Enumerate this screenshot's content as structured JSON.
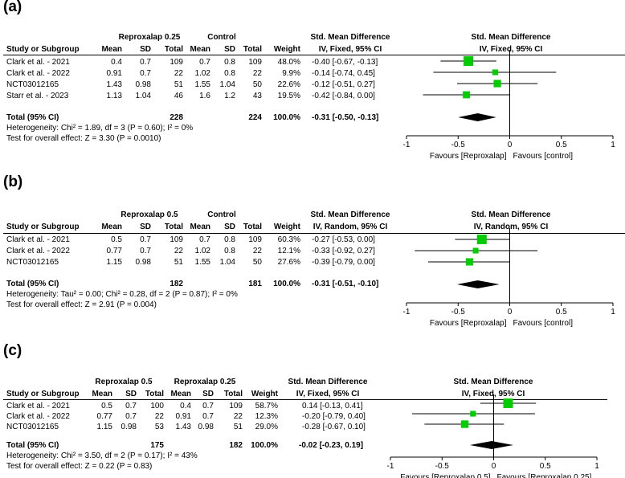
{
  "colors": {
    "square": "#00cc00",
    "line": "#000000",
    "diamond": "#000000"
  },
  "chart_data": [
    {
      "type": "forest",
      "panel_label": "(a)",
      "group1": "Reproxalap 0.25",
      "group2": "Control",
      "col_study": "Study or Subgroup",
      "col_mean": "Mean",
      "col_sd": "SD",
      "col_total": "Total",
      "col_weight": "Weight",
      "effect_title": "Std. Mean Difference",
      "effect_method": "IV, Fixed, 95% CI",
      "studies": [
        {
          "name": "Clark et al. - 2021",
          "m1": "0.4",
          "sd1": "0.7",
          "n1": "109",
          "m2": "0.7",
          "sd2": "0.8",
          "n2": "109",
          "weight": "48.0%",
          "ci_text": "-0.40 [-0.67, -0.13]",
          "est": -0.4,
          "lo": -0.67,
          "hi": -0.13,
          "w": 48.0
        },
        {
          "name": "Clark et al. - 2022",
          "m1": "0.91",
          "sd1": "0.7",
          "n1": "22",
          "m2": "1.02",
          "sd2": "0.8",
          "n2": "22",
          "weight": "9.9%",
          "ci_text": "-0.14 [-0.74, 0.45]",
          "est": -0.14,
          "lo": -0.74,
          "hi": 0.45,
          "w": 9.9
        },
        {
          "name": "NCT03012165",
          "m1": "1.43",
          "sd1": "0.98",
          "n1": "51",
          "m2": "1.55",
          "sd2": "1.04",
          "n2": "50",
          "weight": "22.6%",
          "ci_text": "-0.12 [-0.51, 0.27]",
          "est": -0.12,
          "lo": -0.51,
          "hi": 0.27,
          "w": 22.6
        },
        {
          "name": "Starr et al. - 2023",
          "m1": "1.13",
          "sd1": "1.04",
          "n1": "46",
          "m2": "1.6",
          "sd2": "1.2",
          "n2": "43",
          "weight": "19.5%",
          "ci_text": "-0.42 [-0.84, 0.00]",
          "est": -0.42,
          "lo": -0.84,
          "hi": 0.0,
          "w": 19.5
        }
      ],
      "total": {
        "label": "Total (95% CI)",
        "n1": "228",
        "n2": "224",
        "weight": "100.0%",
        "ci_text": "-0.31 [-0.50, -0.13]",
        "est": -0.31,
        "lo": -0.5,
        "hi": -0.13
      },
      "heterogeneity": "Heterogeneity: Chi² = 1.89, df = 3 (P = 0.60); I² = 0%",
      "overall": "Test for overall effect: Z = 3.30 (P = 0.0010)",
      "xlim": [
        -1,
        1
      ],
      "ticks": [
        {
          "v": -1,
          "label": "-1"
        },
        {
          "v": -0.5,
          "label": "-0.5"
        },
        {
          "v": 0,
          "label": "0"
        },
        {
          "v": 0.5,
          "label": "0.5"
        },
        {
          "v": 1,
          "label": "1"
        }
      ],
      "favours_left": "Favours [Reproxalap]",
      "favours_right": "Favours [control]"
    },
    {
      "type": "forest",
      "panel_label": "(b)",
      "group1": "Reproxalap 0.5",
      "group2": "Control",
      "col_study": "Study or Subgroup",
      "col_mean": "Mean",
      "col_sd": "SD",
      "col_total": "Total",
      "col_weight": "Weight",
      "effect_title": "Std. Mean Difference",
      "effect_method": "IV, Random, 95% CI",
      "studies": [
        {
          "name": "Clark et al. - 2021",
          "m1": "0.5",
          "sd1": "0.7",
          "n1": "109",
          "m2": "0.7",
          "sd2": "0.8",
          "n2": "109",
          "weight": "60.3%",
          "ci_text": "-0.27 [-0.53, 0.00]",
          "est": -0.27,
          "lo": -0.53,
          "hi": 0.0,
          "w": 60.3
        },
        {
          "name": "Clark et al. - 2022",
          "m1": "0.77",
          "sd1": "0.7",
          "n1": "22",
          "m2": "1.02",
          "sd2": "0.8",
          "n2": "22",
          "weight": "12.1%",
          "ci_text": "-0.33 [-0.92, 0.27]",
          "est": -0.33,
          "lo": -0.92,
          "hi": 0.27,
          "w": 12.1
        },
        {
          "name": "NCT03012165",
          "m1": "1.15",
          "sd1": "0.98",
          "n1": "51",
          "m2": "1.55",
          "sd2": "1.04",
          "n2": "50",
          "weight": "27.6%",
          "ci_text": "-0.39 [-0.79, 0.00]",
          "est": -0.39,
          "lo": -0.79,
          "hi": 0.0,
          "w": 27.6
        }
      ],
      "total": {
        "label": "Total (95% CI)",
        "n1": "182",
        "n2": "181",
        "weight": "100.0%",
        "ci_text": "-0.31 [-0.51, -0.10]",
        "est": -0.31,
        "lo": -0.51,
        "hi": -0.1
      },
      "heterogeneity": "Heterogeneity: Tau² = 0.00; Chi² = 0.28, df = 2 (P = 0.87); I² = 0%",
      "overall": "Test for overall effect: Z = 2.91 (P = 0.004)",
      "xlim": [
        -1,
        1
      ],
      "ticks": [
        {
          "v": -1,
          "label": "-1"
        },
        {
          "v": -0.5,
          "label": "-0.5"
        },
        {
          "v": 0,
          "label": "0"
        },
        {
          "v": 0.5,
          "label": "0.5"
        },
        {
          "v": 1,
          "label": "1"
        }
      ],
      "favours_left": "Favours [Reproxalap]",
      "favours_right": "Favours [control]"
    },
    {
      "type": "forest",
      "panel_label": "(c)",
      "group1": "Reproxalap 0.5",
      "group2": "Reproxalap 0.25",
      "col_study": "Study or Subgroup",
      "col_mean": "Mean",
      "col_sd": "SD",
      "col_total": "Total",
      "col_weight": "Weight",
      "effect_title": "Std. Mean Difference",
      "effect_method": "IV, Fixed, 95% CI",
      "studies": [
        {
          "name": "Clark et al. - 2021",
          "m1": "0.5",
          "sd1": "0.7",
          "n1": "100",
          "m2": "0.4",
          "sd2": "0.7",
          "n2": "109",
          "weight": "58.7%",
          "ci_text": "0.14 [-0.13, 0.41]",
          "est": 0.14,
          "lo": -0.13,
          "hi": 0.41,
          "w": 58.7
        },
        {
          "name": "Clark et al. - 2022",
          "m1": "0.77",
          "sd1": "0.7",
          "n1": "22",
          "m2": "0.91",
          "sd2": "0.7",
          "n2": "22",
          "weight": "12.3%",
          "ci_text": "-0.20 [-0.79, 0.40]",
          "est": -0.2,
          "lo": -0.79,
          "hi": 0.4,
          "w": 12.3
        },
        {
          "name": "NCT03012165",
          "m1": "1.15",
          "sd1": "0.98",
          "n1": "53",
          "m2": "1.43",
          "sd2": "0.98",
          "n2": "51",
          "weight": "29.0%",
          "ci_text": "-0.28 [-0.67, 0.10]",
          "est": -0.28,
          "lo": -0.67,
          "hi": 0.1,
          "w": 29.0
        }
      ],
      "total": {
        "label": "Total (95% CI)",
        "n1": "175",
        "n2": "182",
        "weight": "100.0%",
        "ci_text": "-0.02 [-0.23, 0.19]",
        "est": -0.02,
        "lo": -0.23,
        "hi": 0.19
      },
      "heterogeneity": "Heterogeneity: Chi² = 3.50, df = 2 (P = 0.17); I² = 43%",
      "overall": "Test for overall effect: Z = 0.22 (P = 0.83)",
      "xlim": [
        -1,
        1
      ],
      "ticks": [
        {
          "v": -1,
          "label": "-1"
        },
        {
          "v": -0.5,
          "label": "-0.5"
        },
        {
          "v": 0,
          "label": "0"
        },
        {
          "v": 0.5,
          "label": "0.5"
        },
        {
          "v": 1,
          "label": "1"
        }
      ],
      "favours_left": "Favours [Reproxalap 0.5]",
      "favours_right": "Favours [Reproxalap 0.25]"
    }
  ]
}
